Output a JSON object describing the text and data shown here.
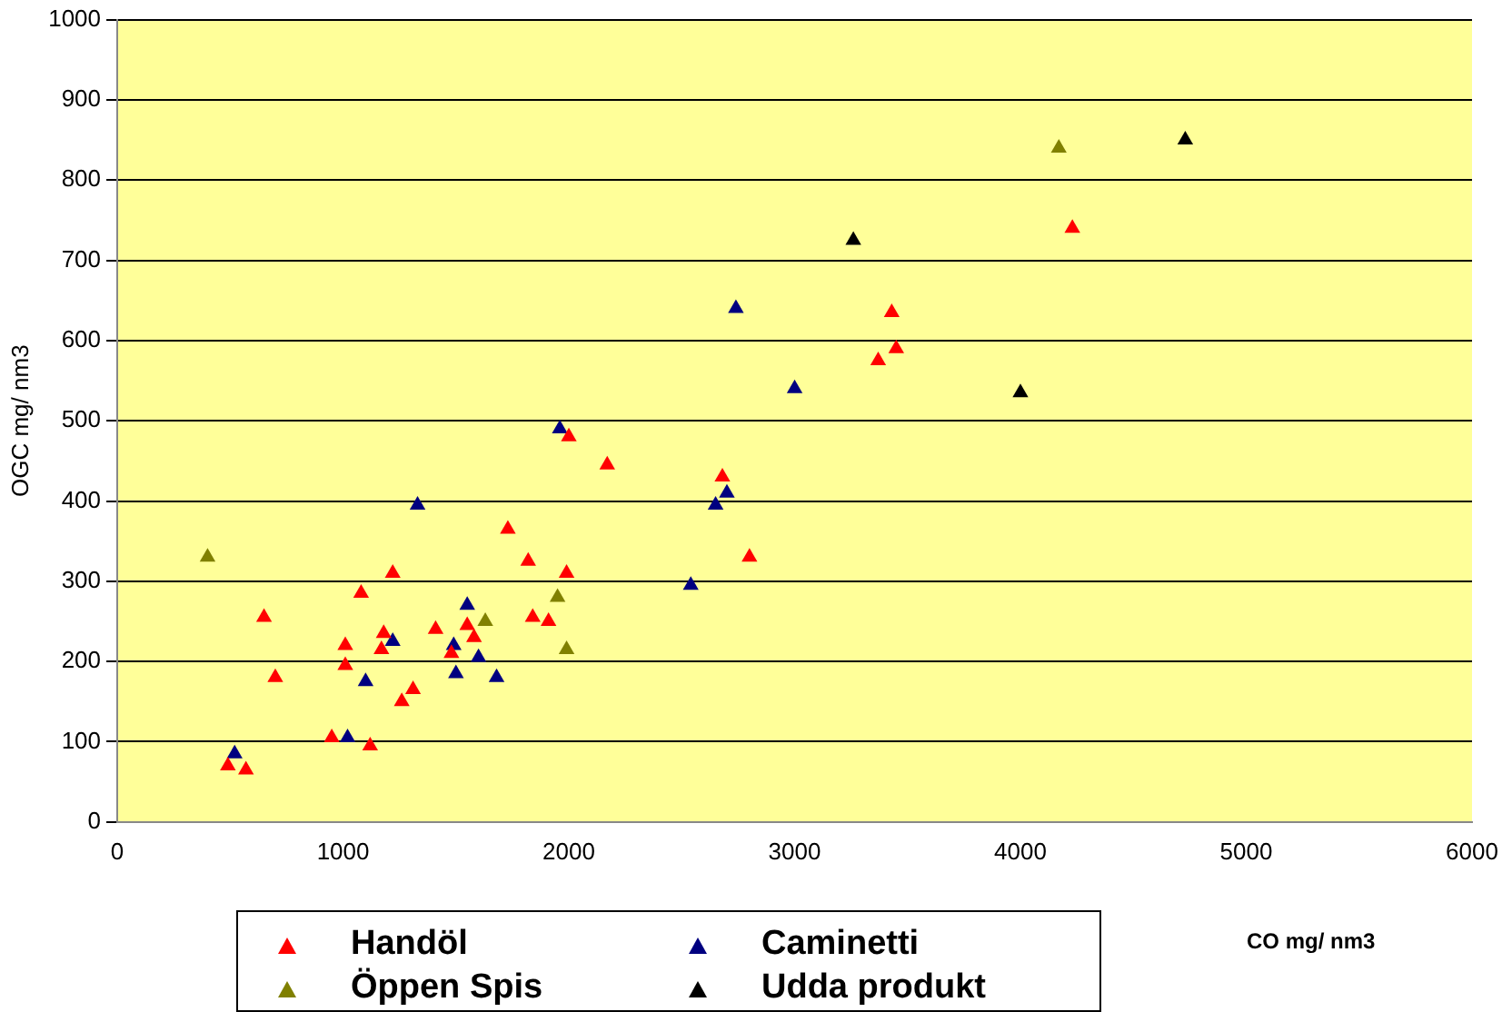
{
  "chart_data": {
    "type": "scatter",
    "xlabel": "CO mg/ nm3",
    "ylabel": "OGC mg/ nm3",
    "xlim": [
      0,
      6000
    ],
    "xticks": [
      0,
      1000,
      2000,
      3000,
      4000,
      5000,
      6000
    ],
    "ylim": [
      0,
      1000
    ],
    "yticks": [
      0,
      100,
      200,
      300,
      400,
      500,
      600,
      700,
      800,
      900,
      1000
    ],
    "grid": "y",
    "legend": "bottom",
    "marker": "triangle",
    "series": [
      {
        "name": "Handöl",
        "color": "#ff0000",
        "x": [
          490,
          570,
          650,
          700,
          950,
          1120,
          1010,
          1010,
          1080,
          1170,
          1180,
          1220,
          1260,
          1310,
          1410,
          1480,
          1550,
          1580,
          1730,
          1820,
          1840,
          1910,
          1990,
          2000,
          2170,
          2680,
          2800,
          3370,
          3450,
          3430,
          4230
        ],
        "values": [
          70,
          65,
          255,
          180,
          105,
          95,
          220,
          195,
          285,
          215,
          235,
          310,
          150,
          165,
          240,
          210,
          245,
          230,
          365,
          325,
          255,
          250,
          310,
          480,
          445,
          430,
          330,
          575,
          590,
          635,
          740
        ]
      },
      {
        "name": "Caminetti",
        "color": "#000080",
        "x": [
          520,
          1020,
          1100,
          1220,
          1330,
          1490,
          1500,
          1550,
          1600,
          1680,
          1960,
          2540,
          2650,
          2700,
          2740,
          3000
        ],
        "values": [
          85,
          105,
          175,
          225,
          395,
          220,
          185,
          270,
          205,
          180,
          490,
          295,
          395,
          410,
          640,
          540
        ]
      },
      {
        "name": "Öppen Spis",
        "color": "#808000",
        "x": [
          400,
          1630,
          1950,
          1990,
          4170
        ],
        "values": [
          330,
          250,
          280,
          215,
          840
        ]
      },
      {
        "name": "Udda produkt",
        "color": "#000000",
        "x": [
          3260,
          4000,
          4730
        ],
        "values": [
          725,
          535,
          850
        ]
      }
    ]
  }
}
